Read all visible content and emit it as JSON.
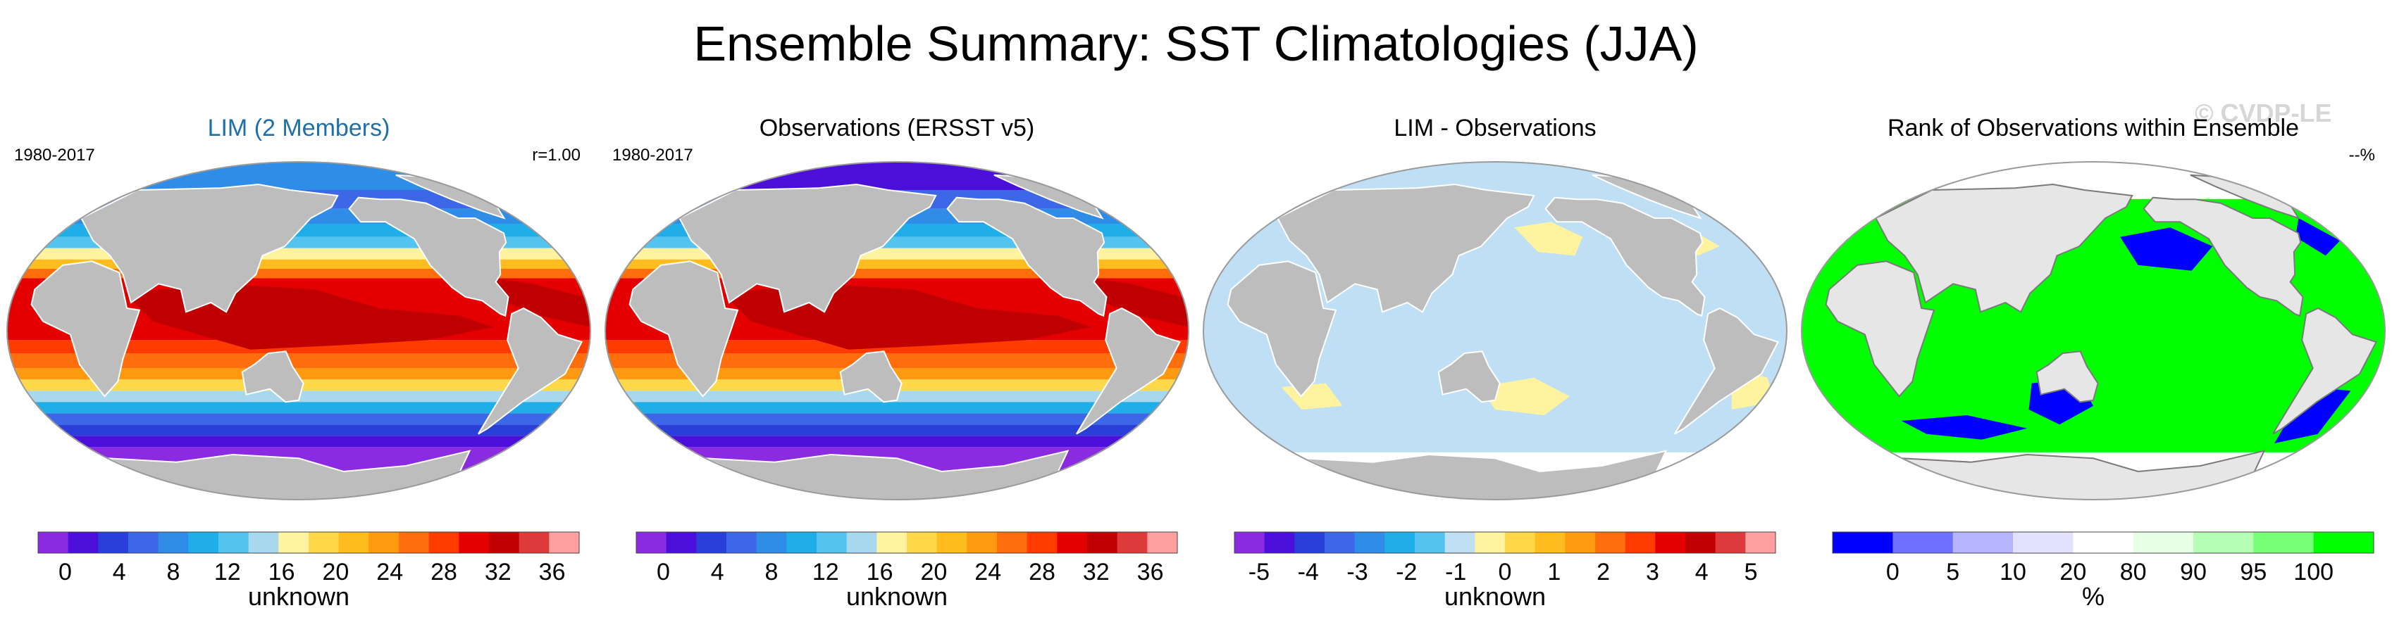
{
  "figure": {
    "title": "Ensemble Summary: SST Climatologies (JJA)",
    "watermark": "© CVDP-LE"
  },
  "colors": {
    "land": "#bdbdbd",
    "land_rank": "#e6e6e6",
    "ocean_edge": "#ffffff"
  },
  "chart_data": [
    {
      "type": "heatmap",
      "title": "LIM (2 Members)",
      "period": "1980-2017",
      "stat": "r=1.00",
      "colorbar_label": "unknown",
      "colorbar_ticks": [
        "0",
        "4",
        "8",
        "12",
        "16",
        "20",
        "24",
        "28",
        "32",
        "36"
      ],
      "colors": [
        "#8a2be2",
        "#4b0fd9",
        "#2a3fd8",
        "#3c67e6",
        "#2f8de8",
        "#1faee8",
        "#53c3f0",
        "#a8d8ee",
        "#fff3a0",
        "#ffd84a",
        "#ffbc1e",
        "#ff9a10",
        "#ff6e0a",
        "#ff3b00",
        "#e40000",
        "#c00000",
        "#dd3b3b",
        "#ffa0a0"
      ],
      "value_range": [
        -2,
        38
      ],
      "field": "sst_climatology_lim"
    },
    {
      "type": "heatmap",
      "title": "Observations (ERSST v5)",
      "period": "1980-2017",
      "colorbar_label": "unknown",
      "colorbar_ticks": [
        "0",
        "4",
        "8",
        "12",
        "16",
        "20",
        "24",
        "28",
        "32",
        "36"
      ],
      "colors": [
        "#8a2be2",
        "#4b0fd9",
        "#2a3fd8",
        "#3c67e6",
        "#2f8de8",
        "#1faee8",
        "#53c3f0",
        "#a8d8ee",
        "#fff3a0",
        "#ffd84a",
        "#ffbc1e",
        "#ff9a10",
        "#ff6e0a",
        "#ff3b00",
        "#e40000",
        "#c00000",
        "#dd3b3b",
        "#ffa0a0"
      ],
      "value_range": [
        -2,
        38
      ],
      "field": "sst_climatology_obs"
    },
    {
      "type": "heatmap",
      "title": "LIM - Observations",
      "colorbar_label": "unknown",
      "colorbar_ticks": [
        "-5",
        "-4",
        "-3",
        "-2",
        "-1",
        "0",
        "1",
        "2",
        "3",
        "4",
        "5"
      ],
      "colors": [
        "#8a2be2",
        "#4b0fd9",
        "#2a3fd8",
        "#3c67e6",
        "#2f8de8",
        "#1faee8",
        "#53c3f0",
        "#bfe0f4",
        "#fff3a0",
        "#ffd84a",
        "#ffbc1e",
        "#ff9a10",
        "#ff6e0a",
        "#ff3b00",
        "#e40000",
        "#c00000",
        "#dd3b3b",
        "#ffa0a0"
      ],
      "value_range": [
        -5.5,
        5.5
      ],
      "field": "sst_difference"
    },
    {
      "type": "heatmap",
      "title": "Rank of Observations within Ensemble",
      "stat": "--%",
      "colorbar_label": "%",
      "colorbar_ticks": [
        "0",
        "5",
        "10",
        "20",
        "80",
        "90",
        "95",
        "100"
      ],
      "colors": [
        "#0000ff",
        "#7070ff",
        "#b4b4ff",
        "#e2e2ff",
        "#ffffff",
        "#e6ffe6",
        "#b4ffb4",
        "#78ff78",
        "#00ff00"
      ],
      "field": "rank"
    }
  ]
}
